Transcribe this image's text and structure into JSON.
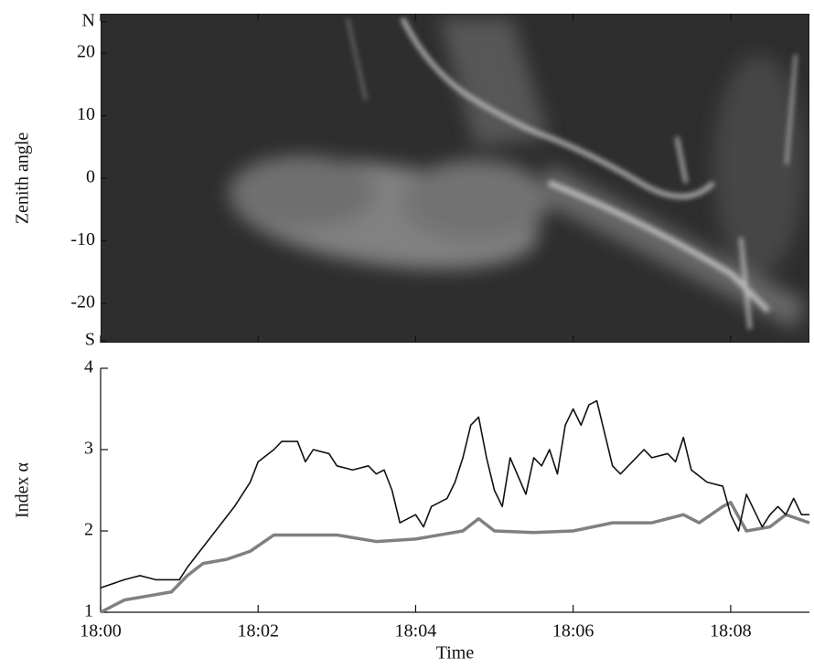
{
  "chart_data": [
    {
      "type": "keogram",
      "ylabel": "Zenith angle",
      "ylim": [
        -26.3,
        26.3
      ],
      "yticks": [
        {
          "value": 25,
          "label": "N"
        },
        20,
        10,
        0,
        -10,
        -20,
        {
          "value": -26,
          "label": "S"
        }
      ]
    },
    {
      "type": "line",
      "xlabel": "Time",
      "ylabel": "Index α",
      "xlim": [
        0,
        9
      ],
      "ylim": [
        1,
        4
      ],
      "xticks": [
        {
          "value": 0,
          "label": "18:00"
        },
        {
          "value": 2,
          "label": "18:02"
        },
        {
          "value": 4,
          "label": "18:04"
        },
        {
          "value": 6,
          "label": "18:06"
        },
        {
          "value": 8,
          "label": "18:08"
        }
      ],
      "yticks": [
        1,
        2,
        3,
        4
      ],
      "series": [
        {
          "color": "#111111",
          "x": [
            0,
            0.3,
            0.5,
            0.7,
            1.0,
            1.1,
            1.3,
            1.5,
            1.7,
            1.9,
            2.0,
            2.2,
            2.3,
            2.5,
            2.6,
            2.7,
            2.9,
            3.0,
            3.2,
            3.4,
            3.5,
            3.6,
            3.7,
            3.8,
            4.0,
            4.1,
            4.2,
            4.4,
            4.5,
            4.6,
            4.7,
            4.8,
            4.9,
            5.0,
            5.1,
            5.2,
            5.4,
            5.5,
            5.6,
            5.7,
            5.8,
            5.9,
            6.0,
            6.1,
            6.2,
            6.3,
            6.4,
            6.5,
            6.6,
            6.8,
            6.9,
            7.0,
            7.2,
            7.3,
            7.4,
            7.5,
            7.7,
            7.9,
            8.0,
            8.1,
            8.2,
            8.4,
            8.5,
            8.6,
            8.7,
            8.8,
            8.9,
            9.0
          ],
          "values": [
            1.3,
            1.4,
            1.45,
            1.4,
            1.4,
            1.55,
            1.8,
            2.05,
            2.3,
            2.6,
            2.85,
            3.0,
            3.1,
            3.1,
            2.85,
            3.0,
            2.95,
            2.8,
            2.75,
            2.8,
            2.7,
            2.75,
            2.5,
            2.1,
            2.2,
            2.05,
            2.3,
            2.4,
            2.6,
            2.9,
            3.3,
            3.4,
            2.9,
            2.5,
            2.3,
            2.9,
            2.45,
            2.9,
            2.8,
            3.0,
            2.7,
            3.3,
            3.5,
            3.3,
            3.55,
            3.6,
            3.2,
            2.8,
            2.7,
            2.9,
            3.0,
            2.9,
            2.95,
            2.85,
            3.15,
            2.75,
            2.6,
            2.55,
            2.2,
            2.0,
            2.45,
            2.05,
            2.2,
            2.3,
            2.2,
            2.4,
            2.2,
            2.2
          ]
        },
        {
          "color": "#808080",
          "x": [
            0,
            0.3,
            0.6,
            0.9,
            1.1,
            1.3,
            1.6,
            1.9,
            2.2,
            2.5,
            3.0,
            3.5,
            4.0,
            4.3,
            4.6,
            4.8,
            5.0,
            5.5,
            6.0,
            6.5,
            7.0,
            7.4,
            7.6,
            7.9,
            8.0,
            8.2,
            8.5,
            8.7,
            9.0
          ],
          "values": [
            1.0,
            1.15,
            1.2,
            1.25,
            1.45,
            1.6,
            1.65,
            1.75,
            1.95,
            1.95,
            1.95,
            1.87,
            1.9,
            1.95,
            2.0,
            2.15,
            2.0,
            1.98,
            2.0,
            2.1,
            2.1,
            2.2,
            2.1,
            2.3,
            2.35,
            2.0,
            2.05,
            2.2,
            2.1
          ]
        }
      ]
    }
  ]
}
